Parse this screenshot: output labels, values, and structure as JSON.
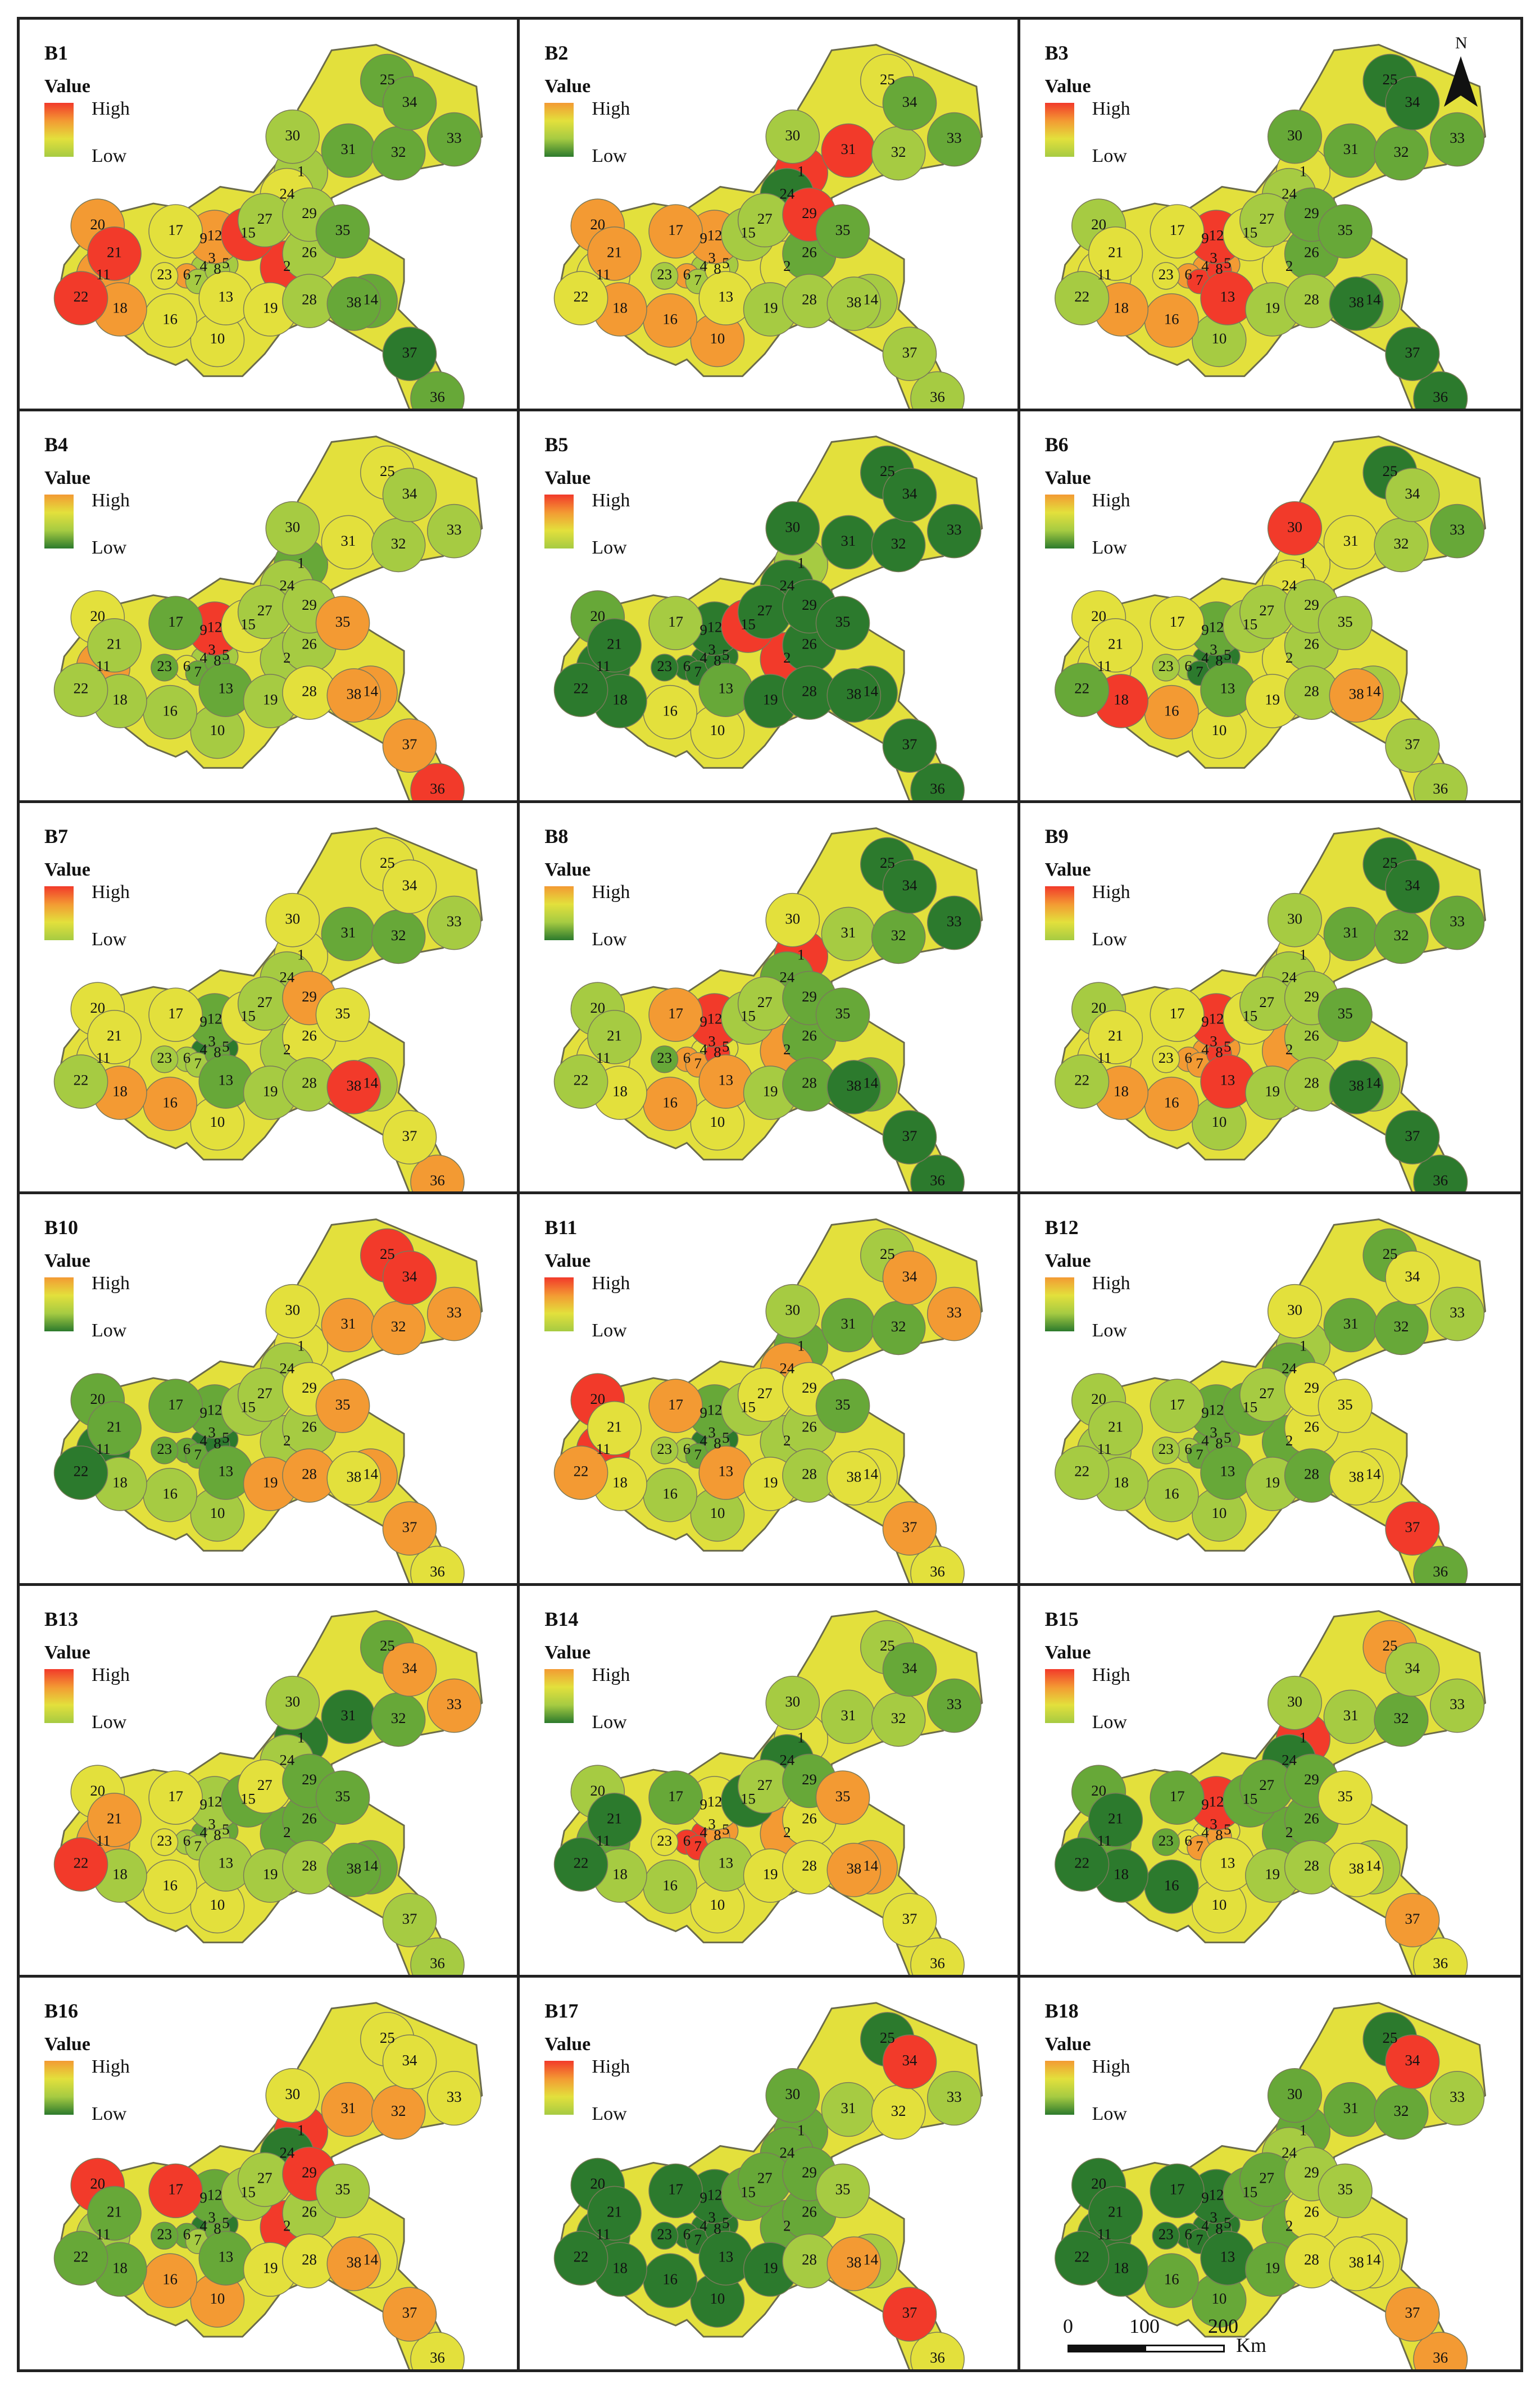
{
  "legend": {
    "title": "Value",
    "high": "High",
    "low": "Low"
  },
  "north": {
    "label": "N",
    "icon": "north-arrow-icon"
  },
  "scale": {
    "ticks": [
      "0",
      "100",
      "200"
    ],
    "unit": "Km"
  },
  "palette": {
    "red": "#f23a2a",
    "orange": "#f39a33",
    "yellow": "#e3e03c",
    "lightgreen": "#a6cb42",
    "green": "#67a838",
    "darkgreen": "#2c7a2d"
  },
  "district_labels": [
    "1",
    "2",
    "3",
    "4",
    "5",
    "6",
    "7",
    "8",
    "9",
    "10",
    "11",
    "12",
    "13",
    "14",
    "15",
    "16",
    "17",
    "18",
    "19",
    "20",
    "21",
    "22",
    "23",
    "24",
    "25",
    "26",
    "27",
    "28",
    "29",
    "30",
    "31",
    "32",
    "33",
    "34",
    "35",
    "36",
    "37",
    "38"
  ],
  "panels": [
    {
      "id": "B1",
      "levels": [
        3,
        0,
        3,
        3,
        3,
        1,
        3,
        3,
        2,
        2,
        1,
        1,
        2,
        4,
        0,
        2,
        2,
        1,
        2,
        1,
        0,
        0,
        2,
        2,
        4,
        3,
        3,
        3,
        3,
        3,
        4,
        4,
        4,
        4,
        4,
        4,
        5,
        4
      ]
    },
    {
      "id": "B2",
      "levels": [
        0,
        2,
        3,
        3,
        3,
        1,
        3,
        2,
        2,
        1,
        2,
        1,
        2,
        3,
        3,
        1,
        1,
        1,
        3,
        1,
        1,
        2,
        3,
        5,
        2,
        4,
        3,
        3,
        0,
        3,
        0,
        3,
        4,
        4,
        4,
        3,
        3,
        3
      ]
    },
    {
      "id": "B3",
      "levels": [
        2,
        2,
        1,
        1,
        1,
        1,
        0,
        0,
        0,
        3,
        2,
        0,
        0,
        3,
        2,
        1,
        2,
        1,
        3,
        3,
        2,
        3,
        2,
        3,
        5,
        4,
        3,
        3,
        4,
        4,
        4,
        4,
        4,
        5,
        4,
        5,
        5,
        5
      ]
    },
    {
      "id": "B4",
      "levels": [
        4,
        3,
        4,
        3,
        3,
        2,
        4,
        4,
        5,
        3,
        1,
        0,
        4,
        1,
        2,
        3,
        4,
        3,
        3,
        2,
        3,
        3,
        4,
        3,
        2,
        3,
        3,
        2,
        3,
        3,
        2,
        3,
        3,
        3,
        1,
        0,
        1,
        1
      ]
    },
    {
      "id": "B5",
      "levels": [
        3,
        0,
        5,
        5,
        5,
        5,
        5,
        5,
        4,
        2,
        5,
        5,
        4,
        5,
        0,
        2,
        3,
        5,
        5,
        4,
        5,
        5,
        5,
        5,
        5,
        5,
        5,
        5,
        5,
        5,
        5,
        5,
        5,
        5,
        5,
        5,
        5,
        5
      ]
    },
    {
      "id": "B6",
      "levels": [
        2,
        2,
        4,
        5,
        5,
        3,
        5,
        5,
        4,
        2,
        2,
        4,
        4,
        3,
        3,
        1,
        2,
        0,
        2,
        2,
        2,
        4,
        3,
        2,
        5,
        3,
        3,
        3,
        3,
        0,
        2,
        3,
        4,
        3,
        3,
        3,
        3,
        1
      ]
    },
    {
      "id": "B7",
      "levels": [
        2,
        3,
        4,
        5,
        5,
        3,
        3,
        4,
        4,
        2,
        2,
        4,
        4,
        3,
        2,
        1,
        2,
        1,
        3,
        2,
        2,
        3,
        3,
        3,
        2,
        2,
        3,
        3,
        1,
        2,
        4,
        4,
        3,
        2,
        2,
        1,
        2,
        0
      ]
    },
    {
      "id": "B8",
      "levels": [
        0,
        1,
        1,
        2,
        2,
        1,
        1,
        0,
        2,
        2,
        2,
        0,
        1,
        4,
        3,
        1,
        1,
        2,
        3,
        3,
        3,
        3,
        4,
        4,
        5,
        4,
        3,
        4,
        4,
        2,
        3,
        4,
        5,
        5,
        4,
        5,
        5,
        5
      ]
    },
    {
      "id": "B9",
      "levels": [
        2,
        1,
        1,
        1,
        1,
        1,
        1,
        0,
        1,
        3,
        2,
        0,
        0,
        3,
        2,
        1,
        2,
        1,
        3,
        3,
        2,
        3,
        2,
        3,
        5,
        3,
        3,
        3,
        3,
        3,
        4,
        4,
        4,
        5,
        4,
        5,
        5,
        5
      ]
    },
    {
      "id": "B10",
      "levels": [
        2,
        3,
        5,
        5,
        5,
        4,
        4,
        5,
        4,
        3,
        5,
        4,
        4,
        1,
        3,
        3,
        4,
        3,
        1,
        4,
        4,
        5,
        4,
        3,
        0,
        3,
        3,
        1,
        2,
        2,
        1,
        1,
        1,
        0,
        1,
        2,
        1,
        2
      ]
    },
    {
      "id": "B11",
      "levels": [
        4,
        3,
        4,
        5,
        5,
        3,
        4,
        4,
        3,
        3,
        0,
        4,
        1,
        2,
        3,
        3,
        1,
        2,
        2,
        0,
        2,
        1,
        3,
        1,
        3,
        3,
        2,
        3,
        2,
        3,
        4,
        4,
        1,
        1,
        4,
        2,
        1,
        2
      ]
    },
    {
      "id": "B12",
      "levels": [
        3,
        4,
        4,
        4,
        4,
        3,
        4,
        4,
        3,
        3,
        3,
        4,
        4,
        2,
        4,
        3,
        3,
        3,
        3,
        3,
        3,
        3,
        3,
        4,
        4,
        2,
        3,
        4,
        2,
        2,
        4,
        4,
        3,
        2,
        2,
        4,
        0,
        2
      ]
    },
    {
      "id": "B13",
      "levels": [
        5,
        4,
        4,
        4,
        4,
        3,
        3,
        3,
        3,
        2,
        1,
        3,
        3,
        4,
        4,
        2,
        2,
        3,
        3,
        2,
        1,
        0,
        2,
        3,
        4,
        4,
        2,
        3,
        4,
        3,
        5,
        4,
        1,
        1,
        4,
        3,
        3,
        4
      ]
    },
    {
      "id": "B14",
      "levels": [
        2,
        1,
        1,
        0,
        1,
        0,
        0,
        1,
        3,
        2,
        4,
        2,
        3,
        1,
        5,
        3,
        4,
        3,
        2,
        3,
        5,
        5,
        2,
        5,
        3,
        2,
        3,
        2,
        4,
        3,
        3,
        3,
        4,
        4,
        1,
        2,
        2,
        1
      ]
    },
    {
      "id": "B15",
      "levels": [
        0,
        4,
        1,
        2,
        2,
        2,
        1,
        1,
        3,
        2,
        4,
        0,
        2,
        3,
        4,
        5,
        4,
        5,
        3,
        4,
        5,
        5,
        4,
        5,
        1,
        4,
        4,
        3,
        4,
        3,
        3,
        4,
        3,
        3,
        2,
        2,
        1,
        2
      ]
    },
    {
      "id": "B16",
      "levels": [
        0,
        0,
        5,
        5,
        5,
        4,
        3,
        4,
        4,
        1,
        3,
        4,
        4,
        2,
        3,
        1,
        0,
        4,
        2,
        0,
        4,
        4,
        4,
        5,
        2,
        3,
        3,
        2,
        0,
        2,
        1,
        1,
        2,
        2,
        3,
        2,
        1,
        1
      ]
    },
    {
      "id": "B17",
      "levels": [
        4,
        4,
        5,
        5,
        5,
        5,
        5,
        5,
        5,
        5,
        5,
        5,
        5,
        3,
        4,
        5,
        5,
        5,
        5,
        5,
        5,
        5,
        5,
        4,
        5,
        4,
        4,
        3,
        4,
        4,
        3,
        2,
        3,
        0,
        3,
        2,
        0,
        1
      ]
    },
    {
      "id": "B18",
      "levels": [
        4,
        4,
        5,
        5,
        5,
        5,
        5,
        5,
        5,
        4,
        5,
        5,
        5,
        2,
        4,
        4,
        5,
        5,
        4,
        5,
        5,
        5,
        5,
        3,
        5,
        2,
        4,
        2,
        3,
        4,
        4,
        4,
        3,
        0,
        3,
        1,
        1,
        2
      ]
    }
  ]
}
